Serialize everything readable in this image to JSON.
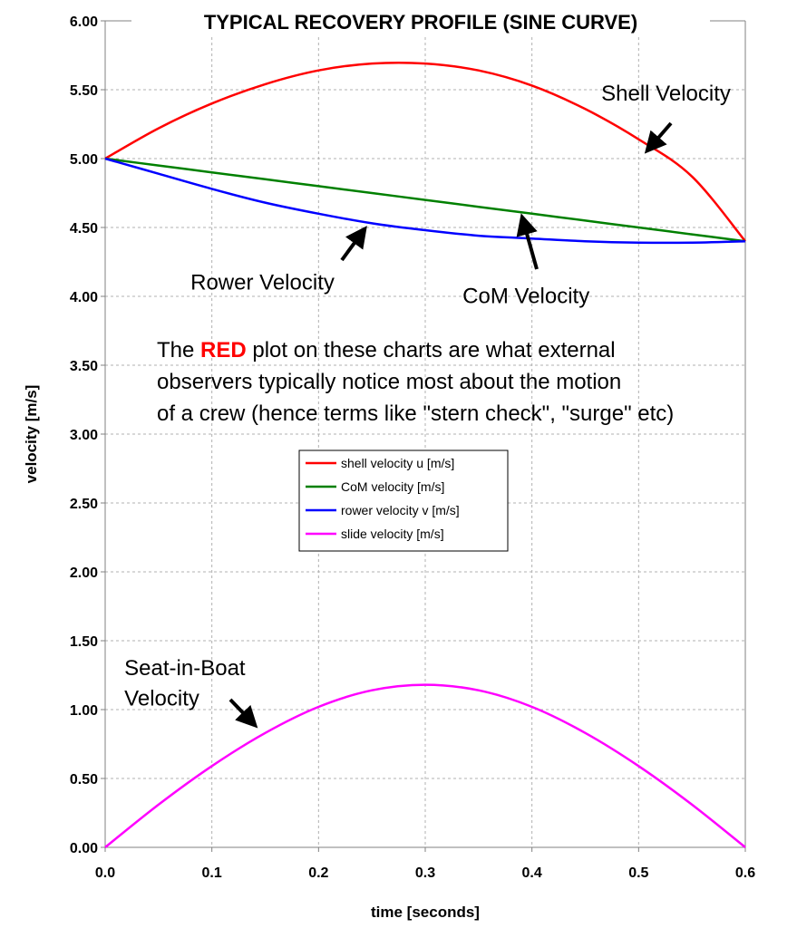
{
  "chart_data": {
    "type": "line",
    "title": "TYPICAL RECOVERY PROFILE (SINE CURVE)",
    "xlabel": "time [seconds]",
    "ylabel": "velocity [m/s]",
    "xlim": [
      0,
      0.6
    ],
    "ylim": [
      0,
      6
    ],
    "xticks": [
      "0.0",
      "0.1",
      "0.2",
      "0.3",
      "0.4",
      "0.5",
      "0.6"
    ],
    "yticks": [
      "0.00",
      "0.50",
      "1.00",
      "1.50",
      "2.00",
      "2.50",
      "3.00",
      "3.50",
      "4.00",
      "4.50",
      "5.00",
      "5.50",
      "6.00"
    ],
    "grid": true,
    "legend_position": "center",
    "colors": {
      "shell": "#ff0000",
      "com": "#008000",
      "rower": "#0000ff",
      "slide": "#ff00ff",
      "note_red": "#ff0000"
    },
    "series": [
      {
        "name": "shell velocity u [m/s]",
        "color": "#ff0000",
        "x": [
          0,
          0.05,
          0.1,
          0.15,
          0.2,
          0.25,
          0.3,
          0.35,
          0.4,
          0.45,
          0.5,
          0.55,
          0.6
        ],
        "y": [
          5.0,
          5.22,
          5.4,
          5.54,
          5.64,
          5.69,
          5.69,
          5.64,
          5.53,
          5.36,
          5.14,
          4.87,
          4.4
        ]
      },
      {
        "name": "CoM velocity [m/s]",
        "color": "#008000",
        "x": [
          0,
          0.05,
          0.1,
          0.15,
          0.2,
          0.25,
          0.3,
          0.35,
          0.4,
          0.45,
          0.5,
          0.55,
          0.6
        ],
        "y": [
          5.0,
          4.95,
          4.9,
          4.85,
          4.8,
          4.75,
          4.7,
          4.65,
          4.6,
          4.55,
          4.5,
          4.45,
          4.4
        ]
      },
      {
        "name": "rower velocity v [m/s]",
        "color": "#0000ff",
        "x": [
          0,
          0.05,
          0.1,
          0.15,
          0.2,
          0.25,
          0.3,
          0.35,
          0.4,
          0.45,
          0.5,
          0.55,
          0.6
        ],
        "y": [
          5.0,
          4.89,
          4.78,
          4.68,
          4.6,
          4.53,
          4.48,
          4.44,
          4.42,
          4.4,
          4.39,
          4.39,
          4.4
        ]
      },
      {
        "name": "slide velocity [m/s]",
        "color": "#ff00ff",
        "x": [
          0,
          0.05,
          0.1,
          0.15,
          0.2,
          0.25,
          0.3,
          0.35,
          0.4,
          0.45,
          0.5,
          0.55,
          0.6
        ],
        "y": [
          0.0,
          0.31,
          0.59,
          0.83,
          1.02,
          1.14,
          1.18,
          1.14,
          1.02,
          0.83,
          0.59,
          0.31,
          0.0
        ]
      }
    ],
    "annotations": [
      {
        "text": "Shell Velocity",
        "x": 0.465,
        "y": 5.42
      },
      {
        "text": "Rower Velocity",
        "x": 0.08,
        "y": 4.05
      },
      {
        "text": "CoM Velocity",
        "x": 0.335,
        "y": 3.95
      },
      {
        "text": "Seat-in-Boat",
        "x": 0.018,
        "y": 1.25
      },
      {
        "text": "Velocity",
        "x": 0.018,
        "y": 1.03
      }
    ],
    "note": {
      "pre": "The ",
      "highlight": "RED",
      "line1_rest": " plot on these charts are what external",
      "line2": "observers typically notice most about the motion",
      "line3": "of a crew (hence terms like \"stern check\", \"surge\" etc)"
    }
  }
}
